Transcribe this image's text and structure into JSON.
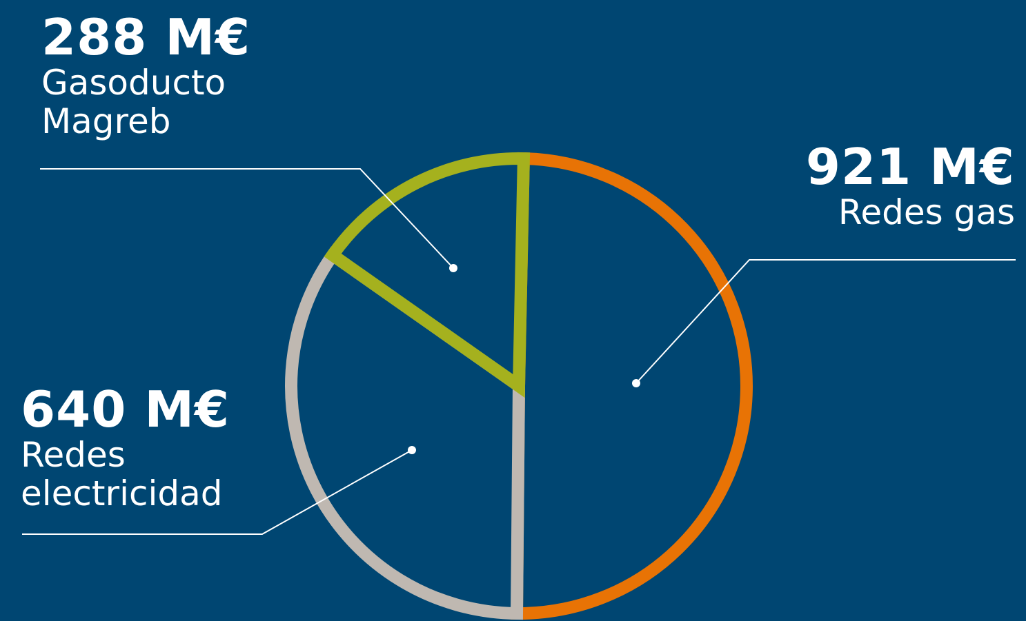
{
  "colors": {
    "background": "#004672",
    "leader": "#ffffff"
  },
  "chart_data": {
    "type": "pie",
    "unit": "M€",
    "title": "",
    "slices": [
      {
        "label": "Redes gas",
        "value": 921,
        "value_label": "921 M€",
        "color": "#E87305"
      },
      {
        "label": "Redes electricidad",
        "value": 640,
        "value_label": "640 M€",
        "color": "#BFB8B1"
      },
      {
        "label": "Gasoducto Magreb",
        "value": 288,
        "value_label": "288 M€",
        "color": "#A5B11E"
      }
    ]
  },
  "labels": {
    "gasoducto": {
      "value": "288 M€",
      "line1": "Gasoducto",
      "line2": "Magreb"
    },
    "redes_gas": {
      "value": "921 M€",
      "line1": "Redes gas"
    },
    "redes_elec": {
      "value": "640 M€",
      "line1": "Redes",
      "line2": "electricidad"
    }
  }
}
